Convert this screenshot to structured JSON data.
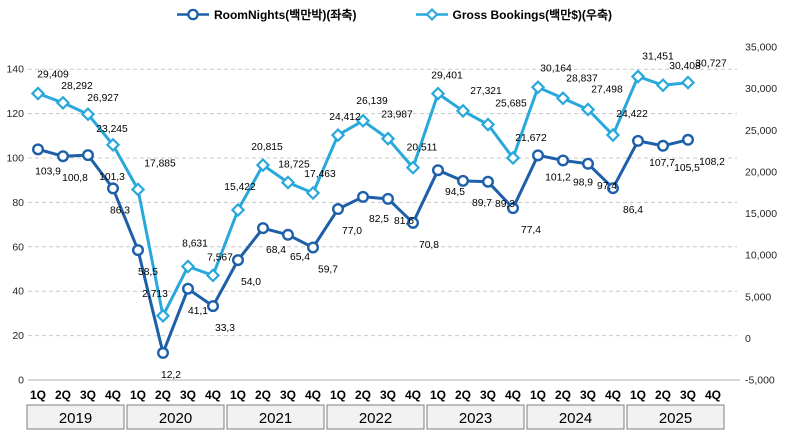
{
  "legend": {
    "items": [
      {
        "label": "RoomNights(백만박)(좌축)",
        "marker": "circle",
        "color": "#1d5fa8"
      },
      {
        "label": "Gross Bookings(백만$)(우축)",
        "marker": "diamond",
        "color": "#29a8dc"
      }
    ]
  },
  "chart_data": {
    "type": "line",
    "title": "",
    "legend_position": "top",
    "gridlines": "horizontal-dashed",
    "x_axis": {
      "year_labels": [
        "2019",
        "2020",
        "2021",
        "2022",
        "2023",
        "2024",
        "2025"
      ],
      "quarter_labels": [
        "1Q",
        "2Q",
        "3Q",
        "4Q"
      ]
    },
    "left_axis": {
      "min": 0,
      "max": 150,
      "ticks": [
        0,
        20,
        40,
        60,
        80,
        100,
        120,
        140
      ]
    },
    "right_axis": {
      "min": -5000,
      "max": 35000,
      "ticks": [
        35000,
        30000,
        25000,
        20000,
        15000,
        10000,
        5000,
        0,
        -5000
      ]
    },
    "series": [
      {
        "name": "RoomNights(백만박)(좌축)",
        "axis": "left",
        "marker": "circle",
        "color": "#1d5fa8",
        "values": [
          103.9,
          100.8,
          101.3,
          86.3,
          58.5,
          12.2,
          41.1,
          33.3,
          54.0,
          68.4,
          65.4,
          59.7,
          77.0,
          82.5,
          81.6,
          70.8,
          94.5,
          89.7,
          89.3,
          77.4,
          101.2,
          98.9,
          97.4,
          86.4,
          107.7,
          105.5,
          108.2
        ],
        "labels": [
          "103,9",
          "100,8",
          "101,3",
          "86,3",
          "58,5",
          "12,2",
          "41,1",
          "33,3",
          "54,0",
          "68,4",
          "65,4",
          "59,7",
          "77,0",
          "82,5",
          "81,6",
          "70,8",
          "94,5",
          "89,7",
          "89,3",
          "77,4",
          "101,2",
          "98,9",
          "97,4",
          "86,4",
          "107,7",
          "105,5",
          "108,2"
        ]
      },
      {
        "name": "Gross Bookings(백만$)(우축)",
        "axis": "right",
        "marker": "diamond",
        "color": "#29a8dc",
        "values": [
          29409,
          28292,
          26927,
          23245,
          17885,
          2713,
          8631,
          7567,
          15422,
          20815,
          18725,
          17463,
          24412,
          26139,
          23987,
          20511,
          29401,
          27321,
          25685,
          21672,
          30164,
          28837,
          27498,
          24422,
          31451,
          30408,
          30727
        ],
        "labels": [
          "29,409",
          "28,292",
          "26,927",
          "23,245",
          "17,885",
          "2,713",
          "8,631",
          "7,567",
          "15,422",
          "20,815",
          "18,725",
          "17,463",
          "24,412",
          "26,139",
          "23,987",
          "20,511",
          "29,401",
          "27,321",
          "25,685",
          "21,672",
          "30,164",
          "28,837",
          "27,498",
          "24,422",
          "31,451",
          "30,408",
          "30,727"
        ]
      }
    ]
  }
}
